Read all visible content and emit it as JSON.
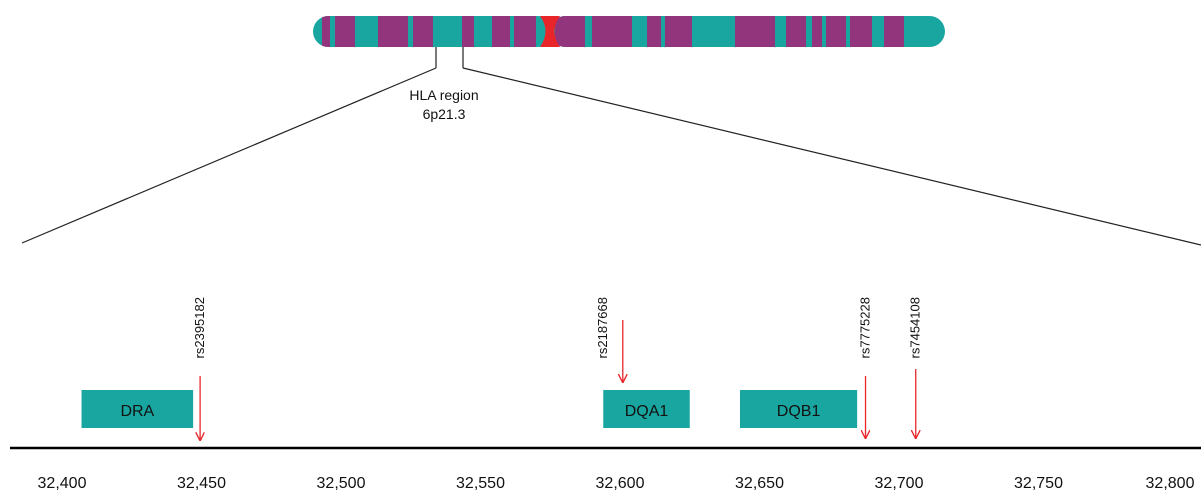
{
  "region": {
    "label": "HLA region",
    "band": "6p21.3"
  },
  "axis": {
    "ticks": [
      {
        "value": 32400,
        "label": "32,400"
      },
      {
        "value": 32450,
        "label": "32,450"
      },
      {
        "value": 32500,
        "label": "32,500"
      },
      {
        "value": 32550,
        "label": "32,550"
      },
      {
        "value": 32600,
        "label": "32,600"
      },
      {
        "value": 32650,
        "label": "32,650"
      },
      {
        "value": 32700,
        "label": "32,700"
      },
      {
        "value": 32750,
        "label": "32,750"
      },
      {
        "value": 32800,
        "label": "32,800"
      }
    ]
  },
  "genes": [
    {
      "label": "DRA",
      "start": 32407,
      "end": 32447
    },
    {
      "label": "DQA1",
      "start": 32594,
      "end": 32625
    },
    {
      "label": "DQB1",
      "start": 32643,
      "end": 32685
    }
  ],
  "snps": [
    {
      "label": "rs2395182",
      "position": 32449.5
    },
    {
      "label": "rs2187668",
      "position": 32601
    },
    {
      "label": "rs7775228",
      "position": 32688
    },
    {
      "label": "rs7454108",
      "position": 32706
    }
  ]
}
